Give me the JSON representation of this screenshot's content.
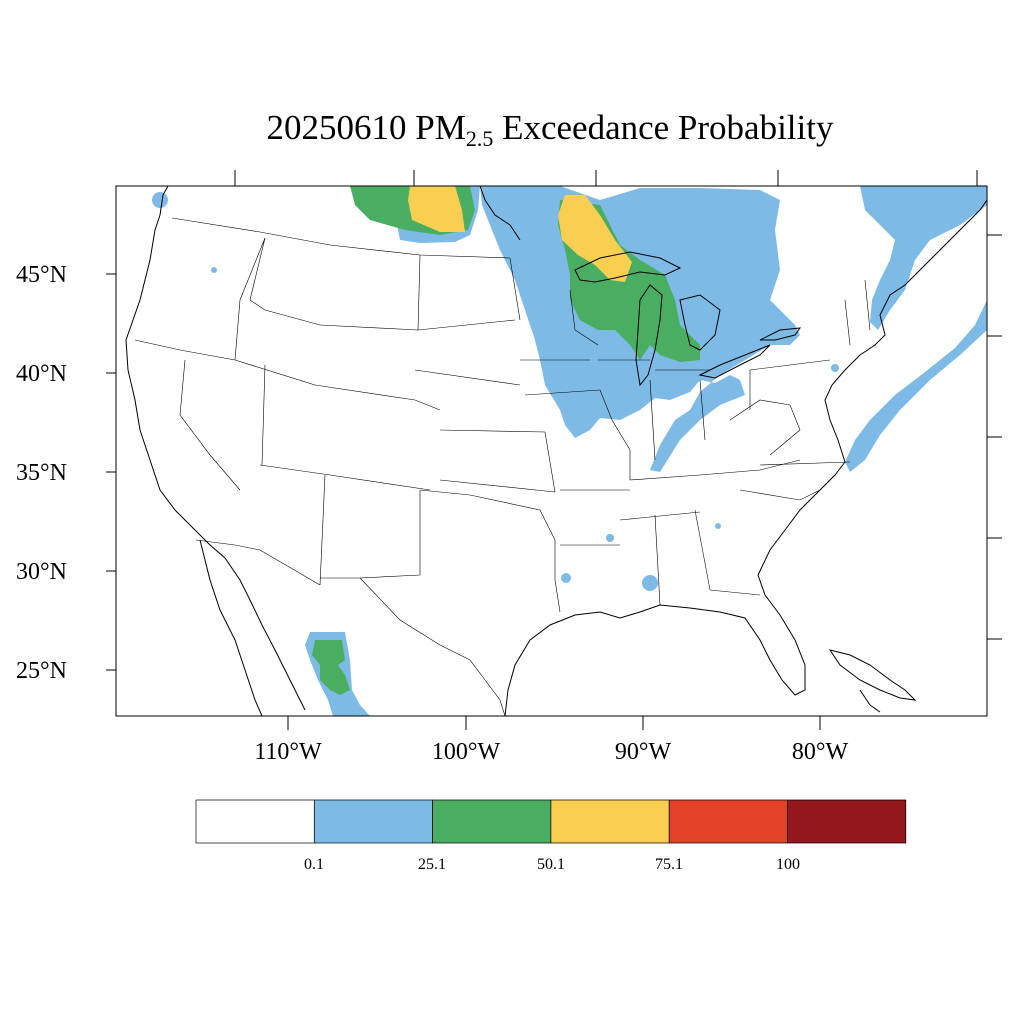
{
  "title": {
    "date": "20250610",
    "pm": "PM",
    "pm_sub": "2.5",
    "rest": "Exceedance Probability"
  },
  "latitude_labels": [
    "45°N",
    "40°N",
    "35°N",
    "30°N",
    "25°N"
  ],
  "longitude_labels": [
    "110°W",
    "100°W",
    "90°W",
    "80°W"
  ],
  "colorbar": {
    "colors": [
      "#ffffff",
      "#7dbbe6",
      "#4aae62",
      "#f9cf52",
      "#e34128",
      "#93171c"
    ],
    "labels": [
      "0.1",
      "25.1",
      "50.1",
      "75.1",
      "100"
    ]
  },
  "map": {
    "region": "Contiguous United States and surrounding areas",
    "layers": [
      "state-boundaries",
      "coastlines",
      "great-lakes",
      "probability-shading"
    ]
  }
}
